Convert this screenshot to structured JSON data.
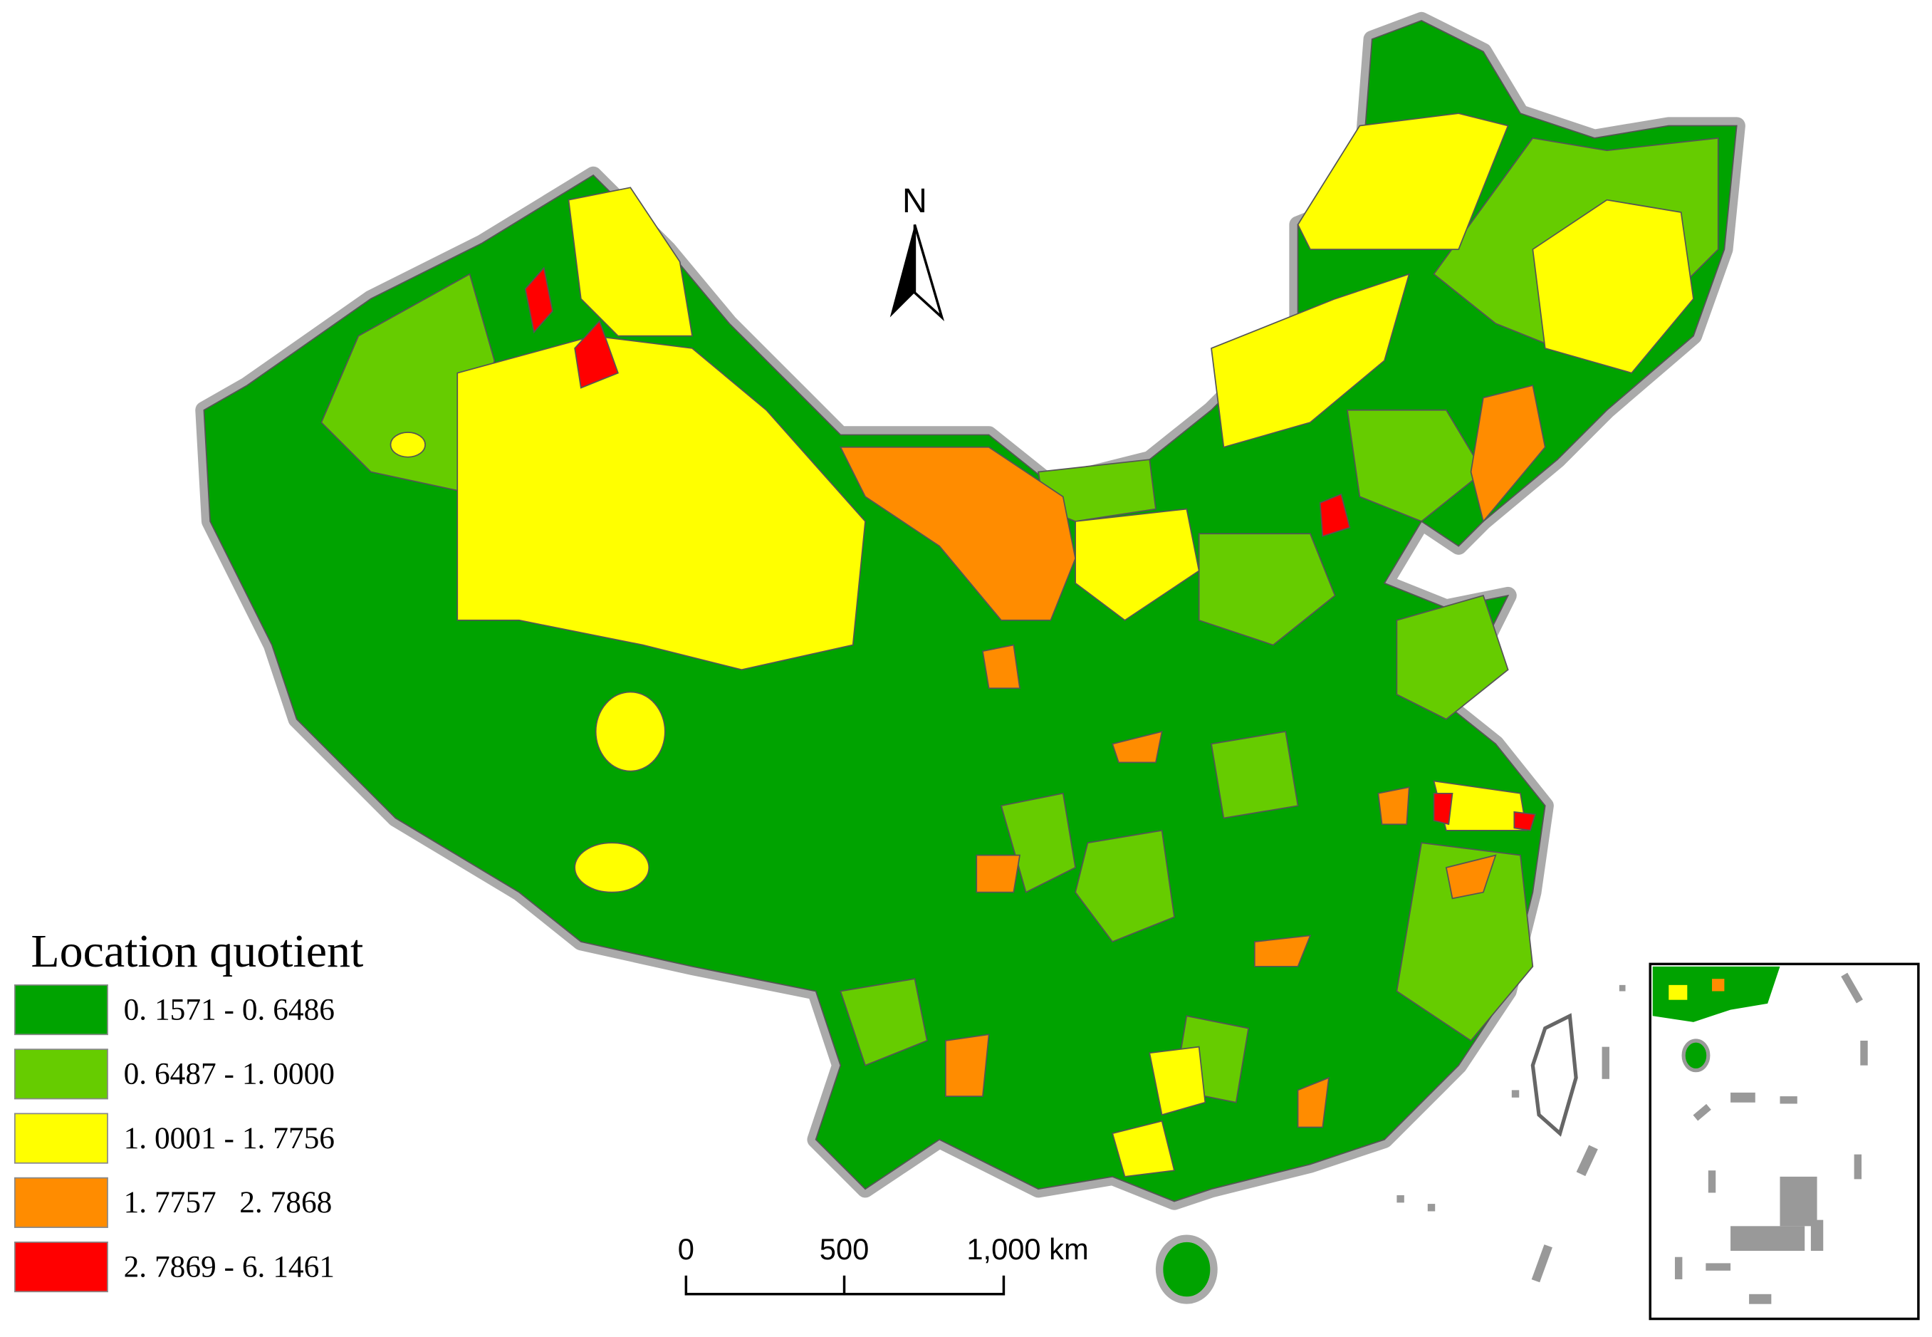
{
  "north_label": "N",
  "legend": {
    "title": "Location quotient",
    "items": [
      {
        "label": "0. 1571 - 0. 6486",
        "color": "#00a300"
      },
      {
        "label": "0. 6487 - 1. 0000",
        "color": "#66cc00"
      },
      {
        "label": "1. 0001 - 1. 7756",
        "color": "#ffff00"
      },
      {
        "label": "1. 7757   2. 7868",
        "color": "#ff8c00"
      },
      {
        "label": "2. 7869 - 6. 1461",
        "color": "#ff0000"
      }
    ]
  },
  "scale_bar": {
    "labels": [
      "0",
      "500",
      "1,000 km"
    ]
  }
}
